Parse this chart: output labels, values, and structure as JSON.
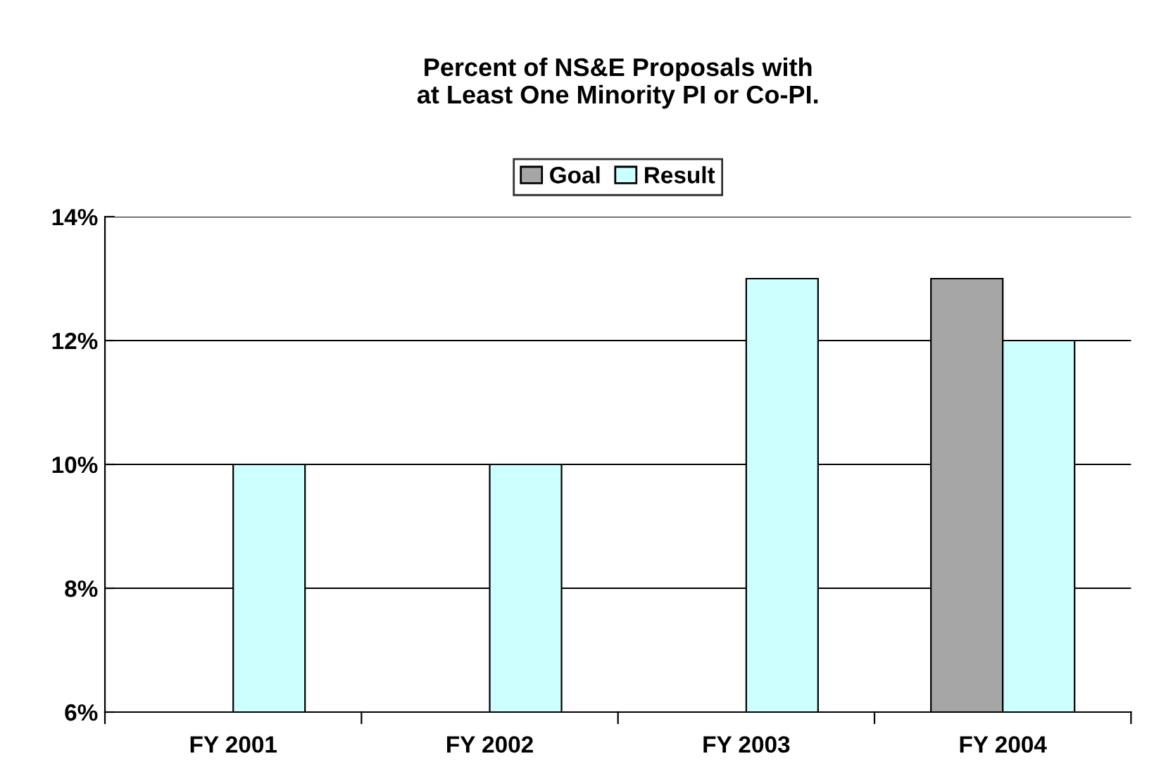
{
  "chart_data": {
    "type": "bar",
    "title": "Percent of NS&E Proposals with\nat Least One Minority PI or Co-PI.",
    "categories": [
      "FY 2001",
      "FY 2002",
      "FY 2003",
      "FY 2004"
    ],
    "series": [
      {
        "name": "Goal",
        "color": "#a6a6a6",
        "values": [
          null,
          null,
          null,
          13
        ]
      },
      {
        "name": "Result",
        "color": "#ccffff",
        "values": [
          10,
          10,
          13,
          12
        ]
      }
    ],
    "ylim": [
      6,
      14
    ],
    "yticks": [
      {
        "value": 6,
        "label": "6%"
      },
      {
        "value": 8,
        "label": "8%"
      },
      {
        "value": 10,
        "label": "10%"
      },
      {
        "value": 12,
        "label": "12%"
      },
      {
        "value": 14,
        "label": "14%"
      }
    ],
    "grid": "y",
    "legend": "top"
  }
}
